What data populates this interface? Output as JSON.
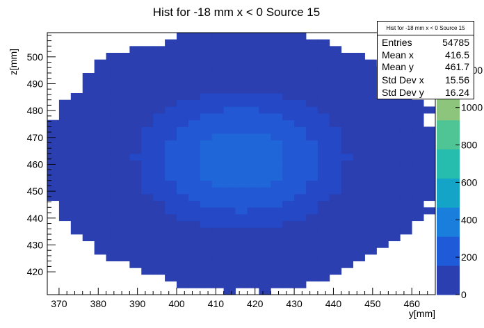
{
  "chart_data": {
    "type": "heatmap",
    "title": "Hist for -18 mm x < 0 Source 15",
    "xlabel": "y[mm]",
    "ylabel": "z[mm]",
    "xlim": [
      367,
      466
    ],
    "ylim": [
      411.5,
      509
    ],
    "x_ticks": [
      "370",
      "380",
      "390",
      "400",
      "410",
      "420",
      "430",
      "440",
      "450",
      "460"
    ],
    "y_ticks": [
      "420",
      "430",
      "440",
      "450",
      "460",
      "470",
      "480",
      "490",
      "500"
    ],
    "colorbar": {
      "min": 0,
      "max": 1400,
      "ticks": [
        "0",
        "200",
        "400",
        "600",
        "800",
        "1000",
        "1200"
      ],
      "palette": [
        "#2b3fb0",
        "#1f5ad8",
        "#1a7fdc",
        "#14a4c8",
        "#26bcae",
        "#4fc596",
        "#8ec57c",
        "#c7bb5c",
        "#e0b24a"
      ]
    },
    "bins": {
      "x_start": 367,
      "x_step": 3,
      "y_start": 411.5,
      "y_step": 2.5,
      "nx": 33,
      "ny": 39
    },
    "stats": {
      "title": "Hist for -18 mm x < 0 Source 15",
      "rows": [
        {
          "label": "Entries",
          "value": "54785"
        },
        {
          "label": "Mean x",
          "value": "416.5"
        },
        {
          "label": "Mean y",
          "value": "461.7"
        },
        {
          "label": "Std Dev x",
          "value": "15.56"
        },
        {
          "label": "Std Dev y",
          "value": "16.24"
        }
      ]
    }
  }
}
